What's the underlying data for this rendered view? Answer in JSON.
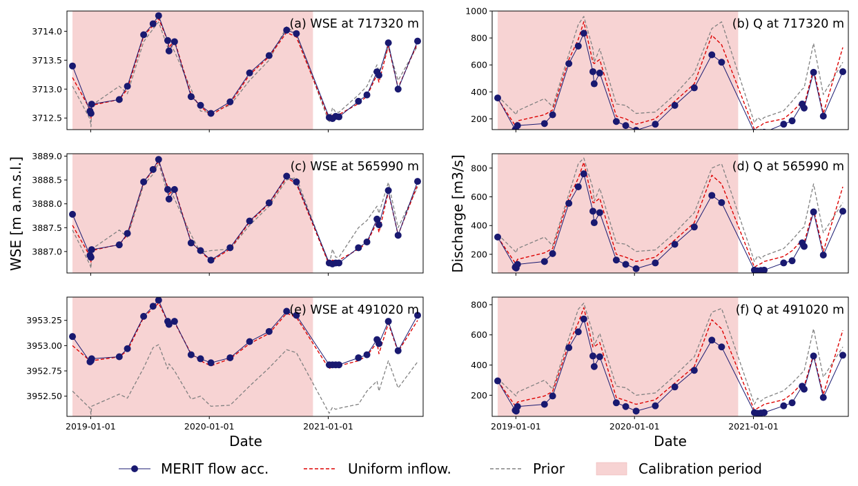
{
  "figure": {
    "left_ylabel": "WSE [m a.m.s.l.]",
    "right_ylabel": "Discharge [m3/s]",
    "xlabel": "Date",
    "x_ticks": [
      "2019-01-01",
      "2020-01-01",
      "2021-01-01"
    ],
    "calibration_period": [
      "2018-11-06",
      "2020-11-15"
    ],
    "x_range": [
      "2018-10-20",
      "2021-10-20"
    ],
    "legend": [
      {
        "name": "MERIT flow acc.",
        "style": "line-marker",
        "color": "#191970"
      },
      {
        "name": "Uniform inflow.",
        "style": "dashed",
        "color": "#dd0000"
      },
      {
        "name": "Prior",
        "style": "dashed",
        "color": "#808080"
      },
      {
        "name": "Calibration period",
        "style": "patch",
        "color": "#f7d3d3"
      }
    ],
    "colors": {
      "merit": "#191970",
      "uniform": "#dd0000",
      "prior": "#808080",
      "calib": "#f7d3d3"
    }
  },
  "chart_data": [
    {
      "type": "line",
      "title": "(a) WSE at 717320 m",
      "ylim": [
        3712.3,
        3714.35
      ],
      "yticks": [
        3712.5,
        3713.0,
        3713.5,
        3714.0
      ],
      "ytick_labels": [
        "3712.5",
        "3713.0",
        "3713.5",
        "3714.0"
      ],
      "x": [
        "2018-11-06",
        "2018-12-30",
        "2019-01-02",
        "2019-01-04",
        "2019-03-30",
        "2019-04-24",
        "2019-06-13",
        "2019-07-12",
        "2019-07-29",
        "2019-08-26",
        "2019-08-30",
        "2019-09-16",
        "2019-11-06",
        "2019-12-05",
        "2020-01-06",
        "2020-03-05",
        "2020-05-04",
        "2020-07-03",
        "2020-08-26",
        "2020-09-25",
        "2021-01-04",
        "2021-01-14",
        "2021-01-24",
        "2021-02-03",
        "2021-04-04",
        "2021-04-30",
        "2021-05-31",
        "2021-06-06",
        "2021-07-05",
        "2021-08-04",
        "2021-10-03"
      ],
      "series": [
        {
          "name": "MERIT flow acc.",
          "values": [
            3713.4,
            3712.62,
            3712.58,
            3712.74,
            3712.82,
            3713.05,
            3713.94,
            3714.13,
            3714.27,
            3713.84,
            3713.66,
            3713.82,
            3712.87,
            3712.72,
            3712.58,
            3712.78,
            3713.28,
            3713.58,
            3714.02,
            3713.96,
            3712.51,
            3712.49,
            3712.53,
            3712.52,
            3712.79,
            3712.9,
            3713.3,
            3713.24,
            3713.8,
            3713.0,
            3713.83
          ]
        },
        {
          "name": "Uniform inflow.",
          "values": [
            3713.2,
            3712.65,
            3712.5,
            3712.72,
            3712.82,
            3713.0,
            3713.92,
            3714.1,
            3714.22,
            3713.84,
            3713.72,
            3713.84,
            3712.9,
            3712.7,
            3712.55,
            3712.75,
            3713.25,
            3713.56,
            3713.98,
            3713.9,
            3712.48,
            3712.55,
            3712.52,
            3712.56,
            3712.75,
            3712.88,
            3713.25,
            3713.12,
            3713.75,
            3713.02,
            3713.8
          ]
        },
        {
          "name": "Prior",
          "values": [
            3713.05,
            3712.48,
            3712.35,
            3712.72,
            3713.05,
            3712.92,
            3713.82,
            3714.04,
            3714.16,
            3713.72,
            3713.82,
            3713.65,
            3713.0,
            3712.62,
            3712.6,
            3712.72,
            3713.15,
            3713.5,
            3714.08,
            3713.95,
            3712.42,
            3712.68,
            3712.6,
            3712.6,
            3712.9,
            3713.05,
            3713.42,
            3713.3,
            3713.72,
            3713.15,
            3713.75
          ]
        }
      ]
    },
    {
      "type": "line",
      "title": "(b) Q at 717320 m",
      "ylim": [
        120,
        1000
      ],
      "yticks": [
        200,
        400,
        600,
        800,
        1000
      ],
      "ytick_labels": [
        "200",
        "400",
        "600",
        "800",
        "1000"
      ],
      "x": [
        "2018-11-06",
        "2018-12-30",
        "2019-01-02",
        "2019-01-06",
        "2019-03-30",
        "2019-04-24",
        "2019-06-13",
        "2019-07-12",
        "2019-07-29",
        "2019-08-26",
        "2019-08-30",
        "2019-09-16",
        "2019-11-06",
        "2019-12-05",
        "2020-01-06",
        "2020-03-05",
        "2020-05-04",
        "2020-07-03",
        "2020-08-26",
        "2020-09-25",
        "2021-01-04",
        "2021-01-14",
        "2021-01-24",
        "2021-02-03",
        "2021-04-04",
        "2021-04-30",
        "2021-05-31",
        "2021-06-06",
        "2021-07-05",
        "2021-08-04",
        "2021-10-03"
      ],
      "series": [
        {
          "name": "MERIT flow acc.",
          "values": [
            355,
            120,
            110,
            150,
            165,
            230,
            610,
            740,
            835,
            550,
            460,
            540,
            180,
            150,
            115,
            160,
            300,
            430,
            675,
            620,
            100,
            95,
            98,
            100,
            160,
            185,
            310,
            280,
            545,
            220,
            550
          ]
        },
        {
          "name": "Uniform inflow.",
          "values": [
            350,
            150,
            155,
            185,
            230,
            265,
            640,
            790,
            920,
            620,
            610,
            640,
            220,
            200,
            160,
            200,
            330,
            460,
            820,
            750,
            120,
            140,
            150,
            170,
            200,
            250,
            330,
            300,
            570,
            240,
            730
          ]
        },
        {
          "name": "Prior",
          "values": [
            370,
            240,
            230,
            260,
            350,
            290,
            680,
            900,
            960,
            720,
            620,
            720,
            310,
            300,
            240,
            250,
            380,
            540,
            870,
            920,
            170,
            210,
            190,
            210,
            260,
            330,
            420,
            430,
            760,
            380,
            620
          ]
        }
      ]
    },
    {
      "type": "line",
      "title": "(c) WSE at 565990 m",
      "ylim": [
        3886.55,
        3889.05
      ],
      "yticks": [
        3887.0,
        3887.5,
        3888.0,
        3888.5,
        3889.0
      ],
      "ytick_labels": [
        "3887.0",
        "3887.5",
        "3888.0",
        "3888.5",
        "3889.0"
      ],
      "x": [
        "2018-11-06",
        "2018-12-30",
        "2019-01-02",
        "2019-01-04",
        "2019-03-30",
        "2019-04-24",
        "2019-06-13",
        "2019-07-12",
        "2019-07-29",
        "2019-08-26",
        "2019-08-30",
        "2019-09-16",
        "2019-11-06",
        "2019-12-05",
        "2020-01-06",
        "2020-03-05",
        "2020-05-04",
        "2020-07-03",
        "2020-08-26",
        "2020-09-25",
        "2021-01-04",
        "2021-01-14",
        "2021-01-24",
        "2021-02-03",
        "2021-04-04",
        "2021-04-30",
        "2021-05-31",
        "2021-06-06",
        "2021-07-05",
        "2021-08-04",
        "2021-10-03"
      ],
      "series": [
        {
          "name": "MERIT flow acc.",
          "values": [
            3887.78,
            3886.92,
            3886.88,
            3887.04,
            3887.14,
            3887.38,
            3888.46,
            3888.72,
            3888.93,
            3888.3,
            3888.1,
            3888.3,
            3887.18,
            3887.02,
            3886.82,
            3887.08,
            3887.64,
            3888.02,
            3888.58,
            3888.46,
            3886.76,
            3886.74,
            3886.76,
            3886.76,
            3887.08,
            3887.2,
            3887.68,
            3887.56,
            3888.28,
            3887.34,
            3888.47
          ]
        },
        {
          "name": "Uniform inflow.",
          "values": [
            3887.55,
            3886.9,
            3886.78,
            3887.02,
            3887.15,
            3887.35,
            3888.45,
            3888.7,
            3888.9,
            3888.35,
            3888.2,
            3888.32,
            3887.2,
            3887.0,
            3886.8,
            3887.05,
            3887.62,
            3888.0,
            3888.55,
            3888.42,
            3886.72,
            3886.82,
            3886.8,
            3886.82,
            3887.05,
            3887.18,
            3887.62,
            3887.4,
            3888.25,
            3887.35,
            3888.4
          ]
        },
        {
          "name": "Prior",
          "values": [
            3887.45,
            3886.72,
            3886.65,
            3887.05,
            3887.45,
            3887.3,
            3888.4,
            3888.62,
            3888.86,
            3888.2,
            3888.35,
            3888.1,
            3887.35,
            3886.98,
            3887.02,
            3887.05,
            3887.55,
            3887.95,
            3888.5,
            3888.55,
            3886.72,
            3887.05,
            3886.88,
            3886.88,
            3887.5,
            3887.65,
            3887.95,
            3887.8,
            3888.45,
            3887.5,
            3888.35
          ]
        }
      ]
    },
    {
      "type": "line",
      "title": "(d) Q at 565990 m",
      "ylim": [
        70,
        900
      ],
      "yticks": [
        200,
        400,
        600,
        800
      ],
      "ytick_labels": [
        "200",
        "400",
        "600",
        "800"
      ],
      "x": [
        "2018-11-06",
        "2018-12-30",
        "2019-01-02",
        "2019-01-06",
        "2019-03-30",
        "2019-04-24",
        "2019-06-13",
        "2019-07-12",
        "2019-07-29",
        "2019-08-26",
        "2019-08-30",
        "2019-09-16",
        "2019-11-06",
        "2019-12-05",
        "2020-01-06",
        "2020-03-05",
        "2020-05-04",
        "2020-07-03",
        "2020-08-26",
        "2020-09-25",
        "2021-01-04",
        "2021-01-14",
        "2021-01-24",
        "2021-02-03",
        "2021-04-04",
        "2021-04-30",
        "2021-05-31",
        "2021-06-06",
        "2021-07-05",
        "2021-08-04",
        "2021-10-03"
      ],
      "series": [
        {
          "name": "MERIT flow acc.",
          "values": [
            320,
            110,
            105,
            130,
            150,
            205,
            555,
            670,
            760,
            500,
            420,
            490,
            160,
            130,
            100,
            140,
            270,
            390,
            610,
            560,
            90,
            85,
            88,
            90,
            140,
            155,
            280,
            255,
            495,
            195,
            500
          ]
        },
        {
          "name": "Uniform inflow.",
          "values": [
            320,
            140,
            145,
            165,
            210,
            240,
            590,
            730,
            840,
            560,
            560,
            590,
            200,
            180,
            150,
            180,
            300,
            420,
            750,
            690,
            110,
            125,
            135,
            150,
            185,
            225,
            300,
            280,
            515,
            220,
            670
          ]
        },
        {
          "name": "Prior",
          "values": [
            340,
            220,
            210,
            240,
            320,
            260,
            620,
            830,
            870,
            660,
            570,
            660,
            280,
            270,
            220,
            230,
            350,
            490,
            800,
            830,
            150,
            190,
            170,
            190,
            240,
            300,
            380,
            390,
            690,
            350,
            560
          ]
        }
      ]
    },
    {
      "type": "line",
      "title": "(e) WSE at 491020 m",
      "ylim": [
        3952.3,
        3953.48
      ],
      "yticks": [
        3952.5,
        3952.75,
        3953.0,
        3953.25
      ],
      "ytick_labels": [
        "3952.50",
        "3952.75",
        "3953.00",
        "3953.25"
      ],
      "x": [
        "2018-11-06",
        "2018-12-30",
        "2019-01-02",
        "2019-01-04",
        "2019-03-30",
        "2019-04-24",
        "2019-06-13",
        "2019-07-12",
        "2019-07-29",
        "2019-08-26",
        "2019-08-30",
        "2019-09-16",
        "2019-11-06",
        "2019-12-05",
        "2020-01-06",
        "2020-03-05",
        "2020-05-04",
        "2020-07-03",
        "2020-08-26",
        "2020-09-25",
        "2021-01-04",
        "2021-01-14",
        "2021-01-24",
        "2021-02-03",
        "2021-04-04",
        "2021-04-30",
        "2021-05-31",
        "2021-06-06",
        "2021-07-05",
        "2021-08-04",
        "2021-10-03"
      ],
      "series": [
        {
          "name": "MERIT flow acc.",
          "values": [
            3953.09,
            3952.84,
            3952.85,
            3952.87,
            3952.89,
            3952.97,
            3953.29,
            3953.39,
            3953.45,
            3953.24,
            3953.21,
            3953.24,
            3952.91,
            3952.87,
            3952.83,
            3952.88,
            3953.04,
            3953.14,
            3953.34,
            3953.3,
            3952.81,
            3952.81,
            3952.81,
            3952.81,
            3952.88,
            3952.91,
            3953.06,
            3953.02,
            3953.24,
            3952.95,
            3953.3
          ]
        },
        {
          "name": "Uniform inflow.",
          "values": [
            3953.0,
            3952.85,
            3952.82,
            3952.85,
            3952.89,
            3952.95,
            3953.28,
            3953.37,
            3953.42,
            3953.24,
            3953.2,
            3953.23,
            3952.92,
            3952.85,
            3952.8,
            3952.87,
            3953.02,
            3953.12,
            3953.32,
            3953.28,
            3952.77,
            3952.8,
            3952.79,
            3952.8,
            3952.85,
            3952.9,
            3953.03,
            3952.92,
            3953.22,
            3952.94,
            3953.25
          ]
        },
        {
          "name": "Prior",
          "values": [
            3952.55,
            3952.38,
            3952.32,
            3952.4,
            3952.52,
            3952.48,
            3952.78,
            3952.98,
            3953.01,
            3952.77,
            3952.82,
            3952.75,
            3952.47,
            3952.5,
            3952.4,
            3952.41,
            3952.6,
            3952.78,
            3952.96,
            3952.93,
            3952.33,
            3952.39,
            3952.37,
            3952.38,
            3952.42,
            3952.55,
            3952.65,
            3952.55,
            3952.85,
            3952.58,
            3952.84
          ]
        }
      ]
    },
    {
      "type": "line",
      "title": "(f) Q at 491020 m",
      "ylim": [
        60,
        850
      ],
      "yticks": [
        200,
        400,
        600,
        800
      ],
      "ytick_labels": [
        "200",
        "400",
        "600",
        "800"
      ],
      "x": [
        "2018-11-06",
        "2018-12-30",
        "2019-01-02",
        "2019-01-06",
        "2019-03-30",
        "2019-04-24",
        "2019-06-13",
        "2019-07-12",
        "2019-07-29",
        "2019-08-26",
        "2019-08-30",
        "2019-09-16",
        "2019-11-06",
        "2019-12-05",
        "2020-01-06",
        "2020-03-05",
        "2020-05-04",
        "2020-07-03",
        "2020-08-26",
        "2020-09-25",
        "2021-01-04",
        "2021-01-14",
        "2021-01-24",
        "2021-02-03",
        "2021-04-04",
        "2021-04-30",
        "2021-05-31",
        "2021-06-06",
        "2021-07-05",
        "2021-08-04",
        "2021-10-03"
      ],
      "series": [
        {
          "name": "MERIT flow acc.",
          "values": [
            295,
            100,
            95,
            125,
            140,
            195,
            515,
            620,
            705,
            460,
            390,
            455,
            150,
            125,
            95,
            130,
            255,
            365,
            565,
            520,
            85,
            80,
            82,
            85,
            130,
            150,
            260,
            240,
            460,
            185,
            465
          ]
        },
        {
          "name": "Uniform inflow.",
          "values": [
            295,
            130,
            135,
            155,
            195,
            225,
            540,
            680,
            780,
            520,
            520,
            550,
            185,
            165,
            140,
            170,
            280,
            390,
            700,
            640,
            100,
            115,
            125,
            140,
            170,
            210,
            280,
            260,
            470,
            205,
            630
          ]
        },
        {
          "name": "Prior",
          "values": [
            310,
            200,
            195,
            220,
            300,
            240,
            580,
            770,
            810,
            610,
            530,
            610,
            260,
            250,
            200,
            215,
            330,
            455,
            750,
            775,
            140,
            180,
            160,
            180,
            230,
            280,
            350,
            360,
            640,
            320,
            520
          ]
        }
      ]
    }
  ]
}
